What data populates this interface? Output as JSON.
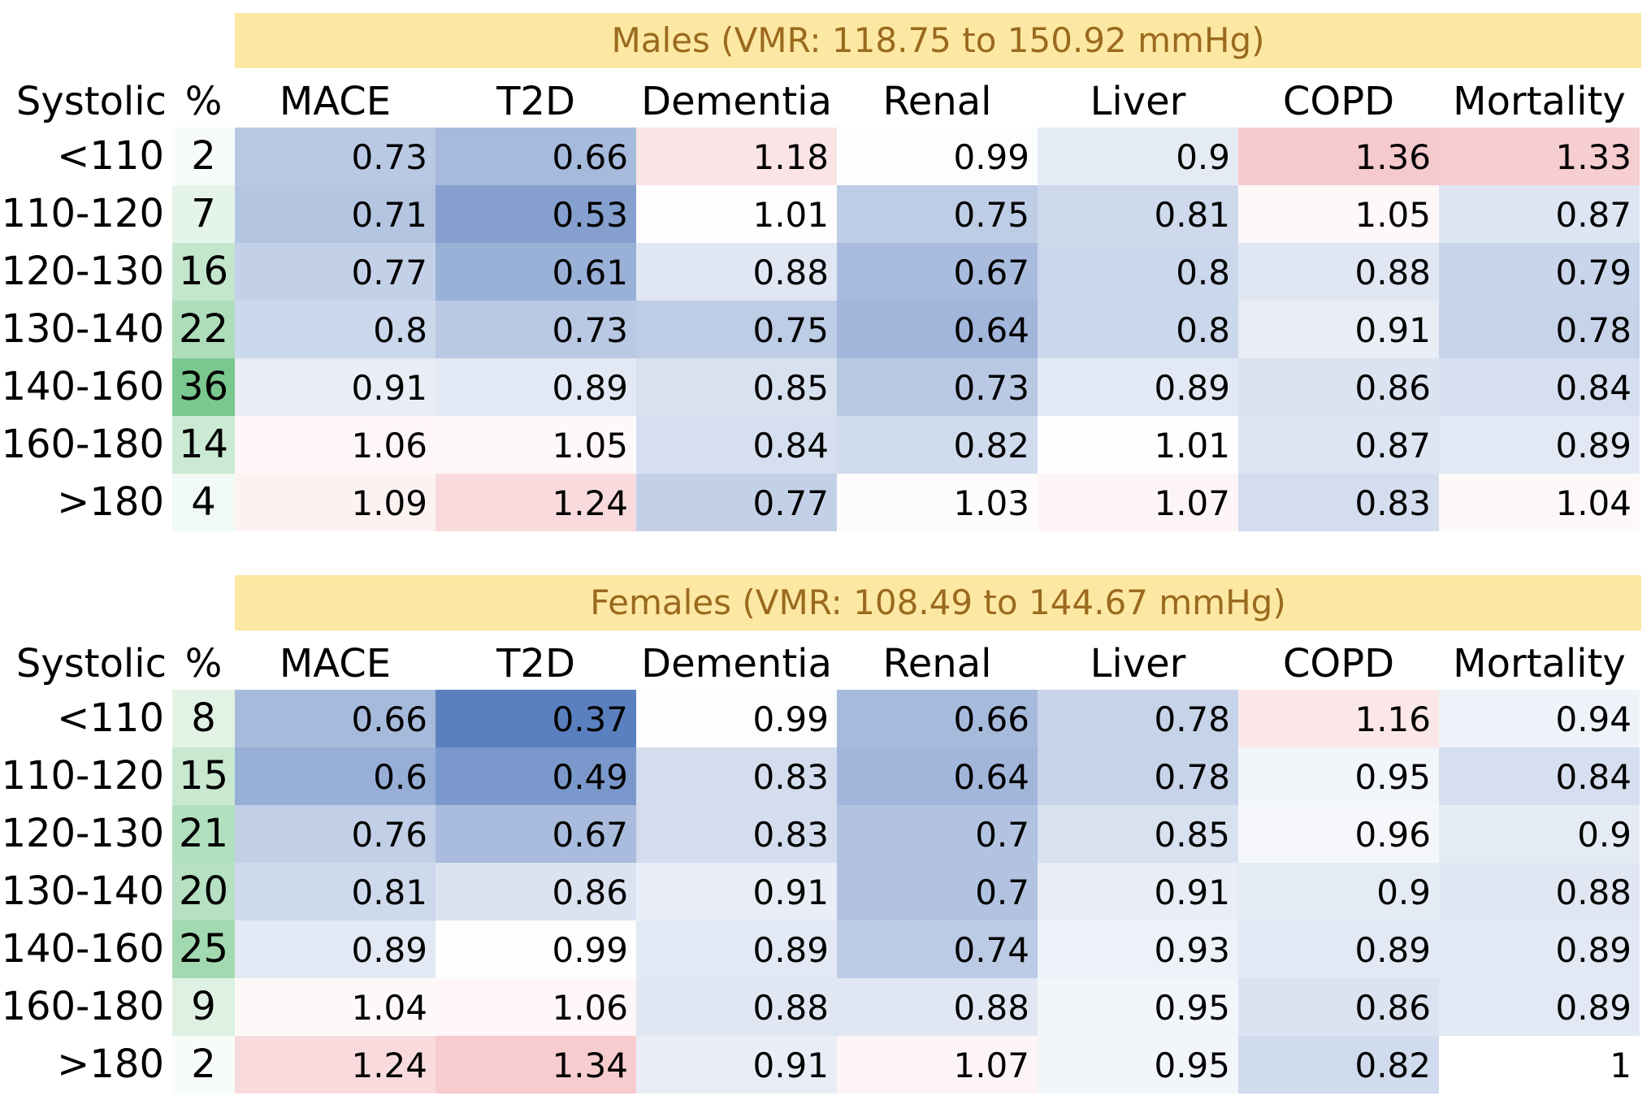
{
  "chart_data": [
    {
      "type": "heatmap",
      "title": "Males (VMR: 118.75 to 150.92 mmHg)",
      "row_header": "Systolic",
      "pct_header": "%",
      "columns": [
        "MACE",
        "T2D",
        "Dementia",
        "Renal",
        "Liver",
        "COPD",
        "Mortality"
      ],
      "rows": [
        "<110",
        "110-120",
        "120-130",
        "130-140",
        "140-160",
        "160-180",
        ">180"
      ],
      "percent": [
        "2",
        "7",
        "16",
        "22",
        "36",
        "14",
        "4"
      ],
      "values": [
        [
          0.73,
          0.66,
          1.18,
          0.99,
          0.9,
          1.36,
          1.33
        ],
        [
          0.71,
          0.53,
          1.01,
          0.75,
          0.81,
          1.05,
          0.87
        ],
        [
          0.77,
          0.61,
          0.88,
          0.67,
          0.8,
          0.88,
          0.79
        ],
        [
          0.8,
          0.73,
          0.75,
          0.64,
          0.8,
          0.91,
          0.78
        ],
        [
          0.91,
          0.89,
          0.85,
          0.73,
          0.89,
          0.86,
          0.84
        ],
        [
          1.06,
          1.05,
          0.84,
          0.82,
          1.01,
          0.87,
          0.89
        ],
        [
          1.09,
          1.24,
          0.77,
          1.03,
          1.07,
          0.83,
          1.04
        ]
      ]
    },
    {
      "type": "heatmap",
      "title": "Females (VMR: 108.49 to 144.67 mmHg)",
      "row_header": "Systolic",
      "pct_header": "%",
      "columns": [
        "MACE",
        "T2D",
        "Dementia",
        "Renal",
        "Liver",
        "COPD",
        "Mortality"
      ],
      "rows": [
        "<110",
        "110-120",
        "120-130",
        "130-140",
        "140-160",
        "160-180",
        ">180"
      ],
      "percent": [
        "8",
        "15",
        "21",
        "20",
        "25",
        "9",
        "2"
      ],
      "values": [
        [
          0.66,
          0.37,
          0.99,
          0.66,
          0.78,
          1.16,
          0.94
        ],
        [
          0.6,
          0.49,
          0.83,
          0.64,
          0.78,
          0.95,
          0.84
        ],
        [
          0.76,
          0.67,
          0.83,
          0.7,
          0.85,
          0.96,
          0.9
        ],
        [
          0.81,
          0.86,
          0.91,
          0.7,
          0.91,
          0.9,
          0.88
        ],
        [
          0.89,
          0.99,
          0.89,
          0.74,
          0.93,
          0.89,
          0.89
        ],
        [
          1.04,
          1.06,
          0.88,
          0.88,
          0.95,
          0.86,
          0.89
        ],
        [
          1.24,
          1.34,
          0.91,
          1.07,
          0.95,
          0.82,
          1.0
        ]
      ]
    }
  ],
  "colors": {
    "banner_fill": "#FDE8A3",
    "banner_text": "#9A6A1E",
    "low_blue": "#5B80BF",
    "high_red": "#F6C9CC",
    "neutral": "#FFFFFF",
    "pct_green": "#63BE7B"
  }
}
